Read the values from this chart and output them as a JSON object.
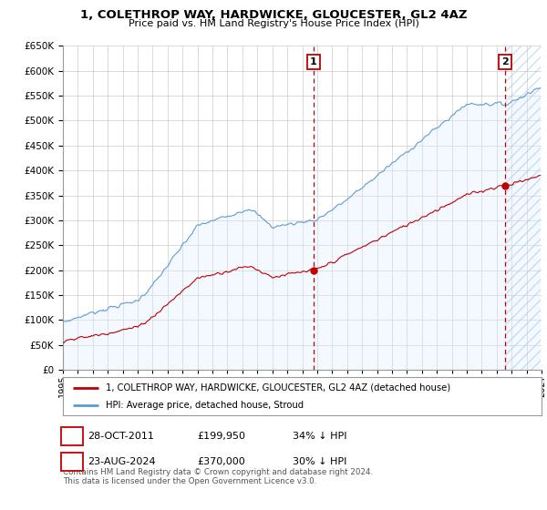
{
  "title": "1, COLETHROP WAY, HARDWICKE, GLOUCESTER, GL2 4AZ",
  "subtitle": "Price paid vs. HM Land Registry's House Price Index (HPI)",
  "hpi_color": "#5b9bd5",
  "price_color": "#c00000",
  "hpi_fill_color": "#ddeeff",
  "point1_date": "28-OCT-2011",
  "point1_price": 199950,
  "point1_pct": "34% ↓ HPI",
  "point2_date": "23-AUG-2024",
  "point2_price": 370000,
  "point2_pct": "30% ↓ HPI",
  "legend_line1": "1, COLETHROP WAY, HARDWICKE, GLOUCESTER, GL2 4AZ (detached house)",
  "legend_line2": "HPI: Average price, detached house, Stroud",
  "footer": "Contains HM Land Registry data © Crown copyright and database right 2024.\nThis data is licensed under the Open Government Licence v3.0.",
  "ylim_min": 0,
  "ylim_max": 650000,
  "background_color": "#ffffff",
  "grid_color": "#cccccc",
  "year_start": 1995,
  "year_end": 2027
}
